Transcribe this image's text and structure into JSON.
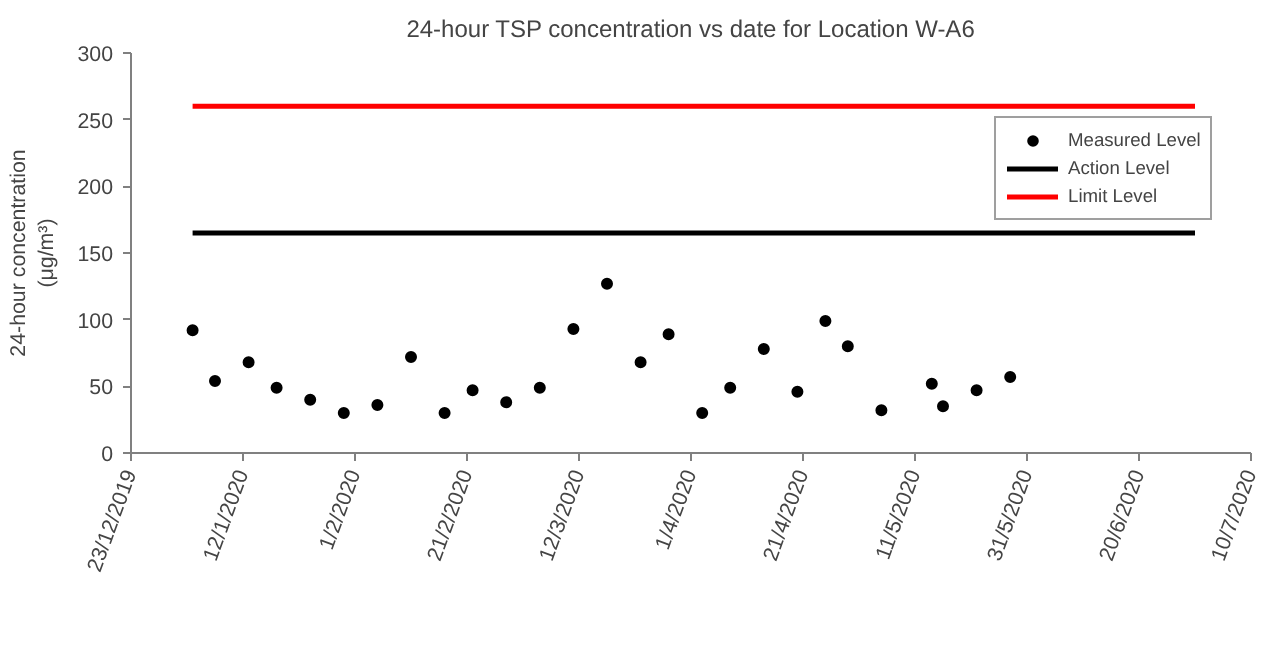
{
  "chart_data": {
    "type": "scatter",
    "title": "24-hour TSP concentration vs date for Location W-A6",
    "ylabel": "24-hour concentration\n(μg/m³)",
    "ylim": [
      0,
      300
    ],
    "yticks": [
      0,
      50,
      100,
      150,
      200,
      250,
      300
    ],
    "xlim": [
      "2019-12-23",
      "2020-07-10"
    ],
    "xticks": [
      {
        "value": "2019-12-23",
        "label": "23/12/2019"
      },
      {
        "value": "2020-01-12",
        "label": "12/1/2020"
      },
      {
        "value": "2020-02-01",
        "label": "1/2/2020"
      },
      {
        "value": "2020-02-21",
        "label": "21/2/2020"
      },
      {
        "value": "2020-03-12",
        "label": "12/3/2020"
      },
      {
        "value": "2020-04-01",
        "label": "1/4/2020"
      },
      {
        "value": "2020-04-21",
        "label": "21/4/2020"
      },
      {
        "value": "2020-05-11",
        "label": "11/5/2020"
      },
      {
        "value": "2020-05-31",
        "label": "31/5/2020"
      },
      {
        "value": "2020-06-20",
        "label": "20/6/2020"
      },
      {
        "value": "2020-07-10",
        "label": "10/7/2020"
      }
    ],
    "grid": false,
    "legend": "top right",
    "series": [
      {
        "name": "Measured Level",
        "marker": "circle",
        "color": "#000000",
        "x": [
          "2020-01-03",
          "2020-01-07",
          "2020-01-13",
          "2020-01-18",
          "2020-01-24",
          "2020-01-30",
          "2020-02-05",
          "2020-02-11",
          "2020-02-17",
          "2020-02-22",
          "2020-02-28",
          "2020-03-05",
          "2020-03-11",
          "2020-03-17",
          "2020-03-23",
          "2020-03-28",
          "2020-04-03",
          "2020-04-08",
          "2020-04-14",
          "2020-04-20",
          "2020-04-25",
          "2020-04-29",
          "2020-05-05",
          "2020-05-14",
          "2020-05-16",
          "2020-05-22",
          "2020-05-28"
        ],
        "values": [
          92,
          54,
          68,
          49,
          40,
          30,
          36,
          72,
          30,
          47,
          38,
          49,
          93,
          127,
          68,
          89,
          30,
          49,
          78,
          46,
          99,
          80,
          32,
          52,
          35,
          47,
          57
        ]
      },
      {
        "name": "Action Level",
        "type": "line",
        "color": "#000000",
        "x": [
          "2020-01-03",
          "2020-06-30"
        ],
        "values": [
          165,
          165
        ]
      },
      {
        "name": "Limit Level",
        "type": "line",
        "color": "#ff0000",
        "x": [
          "2020-01-03",
          "2020-06-30"
        ],
        "values": [
          260,
          260
        ]
      }
    ]
  }
}
